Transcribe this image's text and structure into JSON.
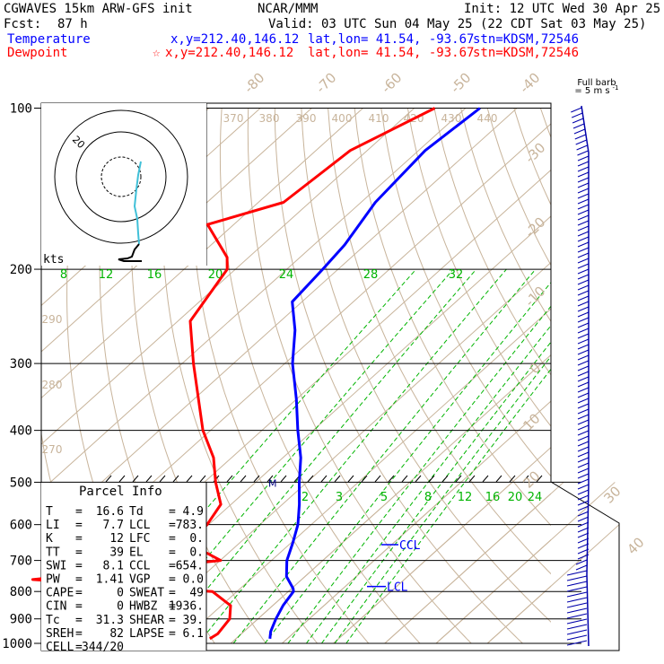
{
  "header": {
    "model": "CGWAVES 15km ARW-GFS init",
    "org": "NCAR/MMM",
    "init": "Init: 12 UTC Wed 30 Apr 25",
    "fcst_label": "Fcst:",
    "fcst_value": "87 h",
    "valid": "Valid: 03 UTC Sun 04 May 25 (22 CDT Sat 03 May 25)",
    "temp_label": "Temperature",
    "temp_xy": "x,y=212.40,146.12",
    "temp_latlon": "lat,lon= 41.54, -93.67",
    "temp_stn": "stn=KDSM,72546",
    "dew_label": "Dewpoint",
    "dew_marker": "☆",
    "dew_xy": "x,y=212.40,146.12",
    "dew_latlon": "lat,lon= 41.54, -93.67",
    "dew_stn": "stn=KDSM,72546"
  },
  "colors": {
    "temperature": "#0000ff",
    "dewpoint": "#ff0000",
    "isotherm": "#c8b49b",
    "mixing_ratio": "#00b400",
    "hodograph": "#000000",
    "hodo_cyan": "#40c0d8",
    "grid": "#000000"
  },
  "chart_data": {
    "type": "skew-t",
    "pressure_levels": [
      100,
      200,
      300,
      400,
      500,
      600,
      700,
      800,
      900,
      1000
    ],
    "isotherm_labels": [
      "-80",
      "-70",
      "-60",
      "-50",
      "-40",
      "-30",
      "-20",
      "-10",
      "0",
      "10",
      "20",
      "30",
      "40"
    ],
    "theta_labels_top": [
      "370",
      "380",
      "390",
      "400",
      "410",
      "420",
      "430",
      "440"
    ],
    "theta_labels_left": [
      "290",
      "280",
      "270"
    ],
    "mixing_ratio_upper": [
      "8",
      "12",
      "16",
      "20",
      "24",
      "28",
      "32"
    ],
    "mixing_ratio_lower": [
      "2",
      "3",
      "5",
      "8",
      "12",
      "16",
      "20",
      "24"
    ],
    "series": [
      {
        "name": "Temperature",
        "points": [
          [
            100,
            -57.2
          ],
          [
            120,
            -58.7
          ],
          [
            150,
            -57.2
          ],
          [
            180,
            -54.0
          ],
          [
            200,
            -53.0
          ],
          [
            230,
            -51.9
          ],
          [
            260,
            -45.2
          ],
          [
            300,
            -38.5
          ],
          [
            350,
            -30.0
          ],
          [
            400,
            -23.0
          ],
          [
            450,
            -16.5
          ],
          [
            500,
            -11.5
          ],
          [
            550,
            -6.7
          ],
          [
            600,
            -2.6
          ],
          [
            650,
            0.4
          ],
          [
            700,
            3.0
          ],
          [
            750,
            6.4
          ],
          [
            790,
            10.3
          ],
          [
            800,
            11.0
          ],
          [
            850,
            12.0
          ],
          [
            900,
            13.5
          ],
          [
            950,
            15.2
          ],
          [
            980,
            16.6
          ]
        ]
      },
      {
        "name": "Dewpoint",
        "points": [
          [
            100,
            -66.0
          ],
          [
            120,
            -73.3
          ],
          [
            150,
            -75.1
          ],
          [
            165,
            -85.1
          ],
          [
            190,
            -74.2
          ],
          [
            200,
            -71.6
          ],
          [
            250,
            -67.6
          ],
          [
            300,
            -57.8
          ],
          [
            400,
            -41.5
          ],
          [
            450,
            -33.5
          ],
          [
            500,
            -27.8
          ],
          [
            550,
            -22.0
          ],
          [
            600,
            -20.3
          ],
          [
            650,
            -19.9
          ],
          [
            700,
            -9.9
          ],
          [
            760,
            -42.4
          ],
          [
            800,
            -4.8
          ],
          [
            850,
            1.8
          ],
          [
            900,
            4.5
          ],
          [
            960,
            5.4
          ],
          [
            980,
            4.9
          ]
        ]
      }
    ],
    "annotations": {
      "ccl_label": "CCL",
      "ccl_pressure": 654,
      "lcl_label": "LCL",
      "lcl_pressure": 783,
      "m_label": "M",
      "m_pressure": 500
    },
    "hodograph": {
      "units_label": "kts",
      "ring_label": "20"
    },
    "wind_barbs": {
      "title_line1": "Full barb",
      "title_line2": "= 5 m s",
      "title_sup": "-1"
    }
  },
  "parcel_info": {
    "title": "Parcel Info",
    "rows": [
      [
        "T",
        "=",
        "16.6",
        "Td",
        "=",
        "4.9"
      ],
      [
        "LI",
        "=",
        "7.7",
        "LCL",
        "=",
        "783."
      ],
      [
        "K",
        "=",
        "12",
        "LFC",
        "=",
        "0."
      ],
      [
        "TT",
        "=",
        "39",
        "EL",
        "=",
        "0."
      ],
      [
        "SWI",
        "=",
        "8.1",
        "CCL",
        "=",
        "654."
      ],
      [
        "PW",
        "=",
        "1.41",
        "VGP",
        "=",
        "0.0"
      ],
      [
        "CAPE",
        "=",
        "0",
        "SWEAT",
        "=",
        "49"
      ],
      [
        "CIN",
        "=",
        "0",
        "HWBZ",
        "=",
        "1936."
      ],
      [
        "Tc",
        "=",
        "31.3",
        "SHEAR",
        "=",
        "39."
      ],
      [
        "SREH",
        "=",
        "82",
        "LAPSE",
        "=",
        "6.1"
      ],
      [
        "CELL",
        "=",
        "344/20",
        "",
        "",
        ""
      ]
    ]
  }
}
